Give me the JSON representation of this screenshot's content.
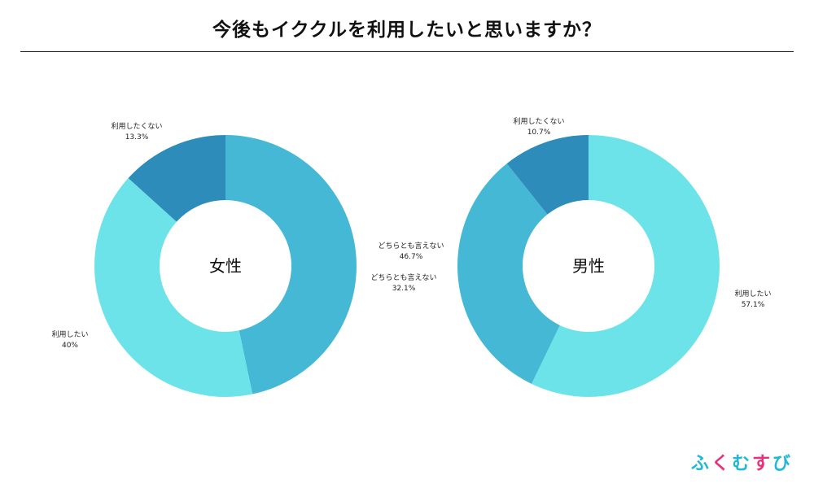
{
  "page": {
    "title": "今後もイククルを利用したいと思いますか？"
  },
  "brand": {
    "chars": [
      "ふ",
      "く",
      "む",
      "す",
      "び"
    ],
    "colors": [
      "#1fb8d6",
      "#e8307a",
      "#1fb8d6",
      "#e8307a",
      "#1fb8d6"
    ]
  },
  "colors": {
    "利用したい": "#6be3e8",
    "どちらとも言えない": "#45b8d6",
    "利用したくない": "#2d8cba"
  },
  "chart_data": [
    {
      "type": "pie",
      "center_label": "女性",
      "slices": [
        {
          "name": "どちらとも言えない",
          "value": 46.7,
          "label": "46.7%"
        },
        {
          "name": "利用したい",
          "value": 40,
          "label": "40%"
        },
        {
          "name": "利用したくない",
          "value": 13.3,
          "label": "13.3%"
        }
      ]
    },
    {
      "type": "pie",
      "center_label": "男性",
      "slices": [
        {
          "name": "利用したい",
          "value": 57.1,
          "label": "57.1%"
        },
        {
          "name": "どちらとも言えない",
          "value": 32.1,
          "label": "32.1%"
        },
        {
          "name": "利用したくない",
          "value": 10.7,
          "label": "10.7%"
        }
      ]
    }
  ]
}
